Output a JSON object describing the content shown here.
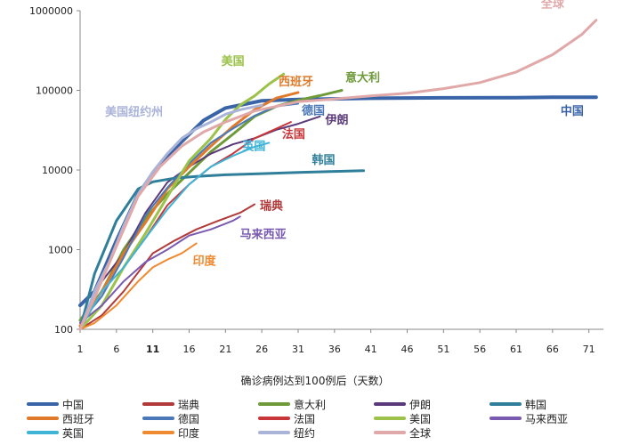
{
  "chart_data": {
    "type": "line",
    "xlabel": "确诊病例达到100例后（天数）",
    "ylabel": "",
    "y_scale": "log",
    "ylim": [
      100,
      1000000
    ],
    "xlim": [
      1,
      73
    ],
    "x_ticks": [
      1,
      6,
      11,
      16,
      21,
      26,
      31,
      36,
      41,
      46,
      51,
      56,
      61,
      66,
      71
    ],
    "y_ticks": [
      "100",
      "1000",
      "10000",
      "100000",
      "1000000"
    ],
    "series": [
      {
        "name": "中国",
        "color": "#3a64a8",
        "width": 4,
        "label": "中国",
        "points": [
          [
            1,
            200
          ],
          [
            3,
            300
          ],
          [
            6,
            1300
          ],
          [
            9,
            5000
          ],
          [
            11,
            9000
          ],
          [
            13,
            15000
          ],
          [
            16,
            28000
          ],
          [
            18,
            42000
          ],
          [
            21,
            60000
          ],
          [
            24,
            68000
          ],
          [
            26,
            74000
          ],
          [
            31,
            77000
          ],
          [
            41,
            79500
          ],
          [
            51,
            80500
          ],
          [
            61,
            81000
          ],
          [
            66,
            82000
          ],
          [
            72,
            82000
          ]
        ]
      },
      {
        "name": "瑞典",
        "color": "#b23a3a",
        "width": 2,
        "label": "瑞典",
        "points": [
          [
            1,
            100
          ],
          [
            4,
            150
          ],
          [
            7,
            300
          ],
          [
            11,
            900
          ],
          [
            14,
            1300
          ],
          [
            17,
            1800
          ],
          [
            20,
            2300
          ],
          [
            23,
            2900
          ],
          [
            25,
            3700
          ]
        ]
      },
      {
        "name": "意大利",
        "color": "#6e9a3a",
        "width": 3,
        "label": "意大利",
        "points": [
          [
            1,
            130
          ],
          [
            4,
            300
          ],
          [
            7,
            1000
          ],
          [
            10,
            2500
          ],
          [
            13,
            5000
          ],
          [
            16,
            9200
          ],
          [
            19,
            17000
          ],
          [
            22,
            28000
          ],
          [
            25,
            47000
          ],
          [
            28,
            63000
          ],
          [
            31,
            75000
          ],
          [
            34,
            86000
          ],
          [
            37,
            100000
          ]
        ]
      },
      {
        "name": "伊朗",
        "color": "#5a3a7a",
        "width": 2,
        "label": "伊朗",
        "points": [
          [
            1,
            100
          ],
          [
            4,
            400
          ],
          [
            7,
            900
          ],
          [
            10,
            2900
          ],
          [
            13,
            7000
          ],
          [
            16,
            11000
          ],
          [
            19,
            16000
          ],
          [
            22,
            21000
          ],
          [
            25,
            25000
          ],
          [
            28,
            32000
          ],
          [
            31,
            38000
          ],
          [
            34,
            47000
          ]
        ]
      },
      {
        "name": "韩国",
        "color": "#2f7f9a",
        "width": 3,
        "label": "韩国",
        "points": [
          [
            1,
            100
          ],
          [
            3,
            500
          ],
          [
            6,
            2300
          ],
          [
            9,
            5800
          ],
          [
            11,
            7100
          ],
          [
            14,
            7900
          ],
          [
            17,
            8300
          ],
          [
            21,
            8700
          ],
          [
            26,
            9000
          ],
          [
            31,
            9300
          ],
          [
            36,
            9600
          ],
          [
            40,
            9800
          ]
        ]
      },
      {
        "name": "西班牙",
        "color": "#e07a2a",
        "width": 3,
        "label": "西班牙",
        "points": [
          [
            1,
            110
          ],
          [
            4,
            300
          ],
          [
            7,
            900
          ],
          [
            10,
            2200
          ],
          [
            13,
            5800
          ],
          [
            16,
            11000
          ],
          [
            19,
            20000
          ],
          [
            22,
            35000
          ],
          [
            25,
            57000
          ],
          [
            28,
            80000
          ],
          [
            31,
            94000
          ]
        ]
      },
      {
        "name": "德国",
        "color": "#4a78b8",
        "width": 2,
        "label": "德国",
        "points": [
          [
            1,
            120
          ],
          [
            4,
            260
          ],
          [
            7,
            800
          ],
          [
            10,
            2700
          ],
          [
            13,
            6000
          ],
          [
            16,
            12000
          ],
          [
            19,
            22000
          ],
          [
            22,
            33000
          ],
          [
            25,
            48000
          ],
          [
            28,
            63000
          ],
          [
            31,
            68000
          ]
        ]
      },
      {
        "name": "法国",
        "color": "#c8363a",
        "width": 2,
        "label": "法国",
        "points": [
          [
            1,
            100
          ],
          [
            4,
            200
          ],
          [
            7,
            600
          ],
          [
            10,
            1400
          ],
          [
            13,
            3600
          ],
          [
            16,
            6600
          ],
          [
            19,
            11000
          ],
          [
            22,
            16000
          ],
          [
            25,
            25000
          ],
          [
            28,
            33000
          ],
          [
            30,
            40000
          ]
        ]
      },
      {
        "name": "美国",
        "color": "#9cc24a",
        "width": 3,
        "label": "美国",
        "points": [
          [
            1,
            100
          ],
          [
            4,
            200
          ],
          [
            7,
            600
          ],
          [
            10,
            1600
          ],
          [
            13,
            4600
          ],
          [
            16,
            13000
          ],
          [
            19,
            25000
          ],
          [
            21,
            43000
          ],
          [
            23,
            65000
          ],
          [
            25,
            85000
          ],
          [
            27,
            120000
          ],
          [
            29,
            160000
          ]
        ]
      },
      {
        "name": "马来西亚",
        "color": "#7a5ab0",
        "width": 2,
        "label": "马来西亚",
        "points": [
          [
            1,
            120
          ],
          [
            4,
            200
          ],
          [
            7,
            400
          ],
          [
            10,
            700
          ],
          [
            13,
            1000
          ],
          [
            16,
            1500
          ],
          [
            19,
            1800
          ],
          [
            22,
            2300
          ],
          [
            23,
            2600
          ]
        ]
      },
      {
        "name": "英国",
        "color": "#3fb4d6",
        "width": 2,
        "label": "英国",
        "points": [
          [
            1,
            100
          ],
          [
            4,
            300
          ],
          [
            7,
            600
          ],
          [
            10,
            1400
          ],
          [
            13,
            3200
          ],
          [
            16,
            6600
          ],
          [
            19,
            11000
          ],
          [
            22,
            15000
          ],
          [
            25,
            19500
          ],
          [
            27,
            22000
          ]
        ]
      },
      {
        "name": "印度",
        "color": "#f08a30",
        "width": 2,
        "label": "印度",
        "points": [
          [
            1,
            100
          ],
          [
            3,
            120
          ],
          [
            6,
            200
          ],
          [
            9,
            400
          ],
          [
            11,
            600
          ],
          [
            13,
            750
          ],
          [
            15,
            900
          ],
          [
            17,
            1200
          ]
        ]
      },
      {
        "name": "纽约",
        "color": "#aab4d8",
        "width": 3,
        "label": "美国纽约州",
        "points": [
          [
            1,
            100
          ],
          [
            3,
            300
          ],
          [
            5,
            700
          ],
          [
            7,
            2000
          ],
          [
            9,
            5000
          ],
          [
            11,
            9500
          ],
          [
            13,
            16000
          ],
          [
            15,
            25000
          ],
          [
            17,
            33000
          ],
          [
            19,
            40000
          ],
          [
            21,
            50000
          ],
          [
            23,
            57000
          ],
          [
            26,
            65000
          ]
        ]
      },
      {
        "name": "全球",
        "color": "#e0a8a8",
        "width": 3,
        "label": "全球",
        "points": [
          [
            1,
            100
          ],
          [
            3,
            250
          ],
          [
            6,
            1100
          ],
          [
            9,
            4700
          ],
          [
            12,
            11000
          ],
          [
            15,
            20000
          ],
          [
            18,
            30000
          ],
          [
            21,
            40000
          ],
          [
            25,
            55000
          ],
          [
            31,
            72000
          ],
          [
            36,
            78000
          ],
          [
            41,
            85000
          ],
          [
            46,
            92000
          ],
          [
            51,
            105000
          ],
          [
            56,
            125000
          ],
          [
            61,
            170000
          ],
          [
            66,
            280000
          ],
          [
            70,
            500000
          ],
          [
            72,
            760000
          ]
        ]
      }
    ]
  },
  "legend": [
    {
      "name": "中国",
      "color": "#3a64a8"
    },
    {
      "name": "瑞典",
      "color": "#b23a3a"
    },
    {
      "name": "意大利",
      "color": "#6e9a3a"
    },
    {
      "name": "伊朗",
      "color": "#5a3a7a"
    },
    {
      "name": "韩国",
      "color": "#2f7f9a"
    },
    {
      "name": "西班牙",
      "color": "#e07a2a"
    },
    {
      "name": "德国",
      "color": "#4a78b8"
    },
    {
      "name": "法国",
      "color": "#c8363a"
    },
    {
      "name": "美国",
      "color": "#9cc24a"
    },
    {
      "name": "马来西亚",
      "color": "#7a5ab0"
    },
    {
      "name": "英国",
      "color": "#3fb4d6"
    },
    {
      "name": "印度",
      "color": "#f08a30"
    },
    {
      "name": "纽约",
      "color": "#aab4d8"
    },
    {
      "name": "全球",
      "color": "#e0a8a8"
    }
  ]
}
